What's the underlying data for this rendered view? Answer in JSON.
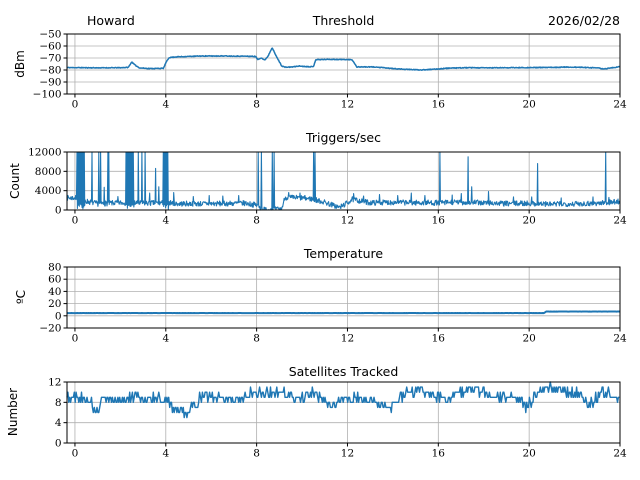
{
  "figure": {
    "background": "#ffffff",
    "line_color": "#1f77b4",
    "grid_color": "#b0b0b0",
    "axis_color": "#000000",
    "text_color": "#000000"
  },
  "chart_data": [
    {
      "type": "line",
      "title": "Threshold",
      "title_left": "Howard",
      "title_right": "2026/02/28",
      "ylabel": "dBm",
      "xlabel": "",
      "xlim": [
        -0.35,
        24
      ],
      "ylim": [
        -100,
        -50
      ],
      "xticks": [
        0,
        4,
        8,
        12,
        16,
        20,
        24
      ],
      "yticks": [
        -100,
        -90,
        -80,
        -70,
        -60,
        -50
      ],
      "grid": true,
      "legend": false,
      "series": [
        {
          "name": "signal-level-dbm",
          "dt": 0.02,
          "seed": 11,
          "noise": 0.3,
          "round": false,
          "keypoints": [
            [
              0,
              -78
            ],
            [
              1.0,
              -78.2
            ],
            [
              2.0,
              -78.1
            ],
            [
              2.35,
              -77.8
            ],
            [
              2.5,
              -73.3
            ],
            [
              2.65,
              -76
            ],
            [
              2.85,
              -78.3
            ],
            [
              3.3,
              -78.8
            ],
            [
              3.9,
              -78.6
            ],
            [
              4.0,
              -74
            ],
            [
              4.15,
              -69.6
            ],
            [
              4.5,
              -69
            ],
            [
              5.5,
              -68.4
            ],
            [
              6.5,
              -68.3
            ],
            [
              7.5,
              -68.5
            ],
            [
              7.95,
              -68.7
            ],
            [
              8.05,
              -71.3
            ],
            [
              8.2,
              -69.8
            ],
            [
              8.35,
              -71.8
            ],
            [
              8.5,
              -68.5
            ],
            [
              8.68,
              -61.3
            ],
            [
              8.85,
              -68
            ],
            [
              9.1,
              -76.5
            ],
            [
              9.25,
              -77.7
            ],
            [
              9.6,
              -77.4
            ],
            [
              9.85,
              -76.7
            ],
            [
              10.15,
              -77.1
            ],
            [
              10.5,
              -77.3
            ],
            [
              10.6,
              -71.4
            ],
            [
              11.2,
              -71.1
            ],
            [
              12.2,
              -71.4
            ],
            [
              12.3,
              -74
            ],
            [
              12.4,
              -77.4
            ],
            [
              13.2,
              -77.5
            ],
            [
              14.0,
              -78.8
            ],
            [
              14.6,
              -79.5
            ],
            [
              15.2,
              -79.9
            ],
            [
              15.8,
              -79.4
            ],
            [
              16.4,
              -78.5
            ],
            [
              17.2,
              -78.1
            ],
            [
              18.0,
              -78.2
            ],
            [
              19.0,
              -78.1
            ],
            [
              20.0,
              -78.0
            ],
            [
              20.8,
              -77.9
            ],
            [
              21.6,
              -77.6
            ],
            [
              22.4,
              -77.8
            ],
            [
              23.0,
              -78.3
            ],
            [
              23.3,
              -79.1
            ],
            [
              23.55,
              -78.4
            ],
            [
              24,
              -77.3
            ]
          ]
        }
      ]
    },
    {
      "type": "line",
      "title": "Triggers/sec",
      "ylabel": "Count",
      "xlabel": "",
      "xlim": [
        -0.35,
        24
      ],
      "ylim": [
        0,
        12000
      ],
      "xticks": [
        0,
        4,
        8,
        12,
        16,
        20,
        24
      ],
      "yticks": [
        0,
        4000,
        8000,
        12000
      ],
      "grid": true,
      "legend": false,
      "series": [
        {
          "name": "trigger-rate",
          "dt": 0.02,
          "seed": 7,
          "noise": 550,
          "round": false,
          "keypoints": [
            [
              0,
              2500
            ],
            [
              0.5,
              1800
            ],
            [
              1.0,
              1300
            ],
            [
              2.0,
              1500
            ],
            [
              3.0,
              1400
            ],
            [
              4.2,
              1500
            ],
            [
              4.5,
              1300
            ],
            [
              6,
              1300
            ],
            [
              7.5,
              1400
            ],
            [
              8.0,
              1000
            ],
            [
              8.3,
              100
            ],
            [
              9.1,
              150
            ],
            [
              9.25,
              2600
            ],
            [
              10.0,
              2500
            ],
            [
              10.4,
              2300
            ],
            [
              11.0,
              1600
            ],
            [
              11.65,
              500
            ],
            [
              12.0,
              1500
            ],
            [
              12.2,
              2200
            ],
            [
              13,
              1500
            ],
            [
              14,
              1600
            ],
            [
              15,
              1500
            ],
            [
              16,
              1500
            ],
            [
              17,
              1600
            ],
            [
              18,
              1500
            ],
            [
              19,
              1300
            ],
            [
              20,
              1400
            ],
            [
              21,
              1200
            ],
            [
              22,
              1300
            ],
            [
              23,
              1400
            ],
            [
              24,
              1800
            ]
          ],
          "spikes": [
            [
              0.75,
              12000
            ],
            [
              1.05,
              12000
            ],
            [
              1.15,
              12000
            ],
            [
              1.3,
              4700
            ],
            [
              1.45,
              12000
            ],
            [
              1.5,
              12000
            ],
            [
              1.9,
              2800
            ],
            [
              2.8,
              12000
            ],
            [
              2.95,
              12000
            ],
            [
              3.1,
              12000
            ],
            [
              3.3,
              3500
            ],
            [
              3.55,
              8600
            ],
            [
              3.7,
              4800
            ],
            [
              4.35,
              3600
            ],
            [
              5.2,
              2800
            ],
            [
              5.9,
              3000
            ],
            [
              6.5,
              2900
            ],
            [
              7.2,
              3000
            ],
            [
              8.05,
              12000
            ],
            [
              8.2,
              12000
            ],
            [
              8.68,
              12000
            ],
            [
              8.75,
              12000
            ],
            [
              9.4,
              3600
            ],
            [
              9.9,
              3500
            ],
            [
              10.5,
              12000
            ],
            [
              10.55,
              12000
            ],
            [
              12.25,
              3400
            ],
            [
              12.7,
              2900
            ],
            [
              13.4,
              3200
            ],
            [
              14.2,
              3000
            ],
            [
              14.8,
              3500
            ],
            [
              15.4,
              3000
            ],
            [
              16.05,
              12000
            ],
            [
              16.6,
              3100
            ],
            [
              17.0,
              3400
            ],
            [
              17.3,
              11000
            ],
            [
              17.45,
              4800
            ],
            [
              18.2,
              3800
            ],
            [
              19.3,
              2700
            ],
            [
              20.1,
              2700
            ],
            [
              20.35,
              9600
            ],
            [
              21.4,
              2500
            ],
            [
              22.8,
              2700
            ],
            [
              23.35,
              12000
            ],
            [
              23.5,
              2600
            ]
          ],
          "blocks": [
            [
              0.08,
              0.45
            ],
            [
              2.25,
              2.6
            ],
            [
              3.88,
              4.12
            ]
          ],
          "block_high": 12000,
          "block_low": 700
        }
      ]
    },
    {
      "type": "line",
      "title": "Temperature",
      "ylabel": "ºC",
      "xlabel": "",
      "xlim": [
        -0.35,
        24
      ],
      "ylim": [
        -20,
        80
      ],
      "xticks": [
        0,
        4,
        8,
        12,
        16,
        20,
        24
      ],
      "yticks": [
        -20,
        0,
        20,
        40,
        60,
        80
      ],
      "grid": true,
      "legend": false,
      "series": [
        {
          "name": "temperature-c",
          "dt": 0.05,
          "seed": 3,
          "noise": 0.08,
          "round": false,
          "keypoints": [
            [
              0,
              4.5
            ],
            [
              20.65,
              4.5
            ],
            [
              20.75,
              7
            ],
            [
              24,
              7
            ]
          ]
        }
      ]
    },
    {
      "type": "line",
      "title": "Satellites Tracked",
      "ylabel": "Number",
      "xlabel": "",
      "xlim": [
        -0.35,
        24
      ],
      "ylim": [
        0,
        12
      ],
      "xticks": [
        0,
        4,
        8,
        12,
        16,
        20,
        24
      ],
      "yticks": [
        0,
        4,
        8,
        12
      ],
      "grid": true,
      "legend": false,
      "series": [
        {
          "name": "satellites-count",
          "dt": 0.04,
          "seed": 5,
          "noise": 1.0,
          "round": true,
          "clip": [
            5,
            12
          ],
          "keypoints": [
            [
              0,
              9
            ],
            [
              0.7,
              8.5
            ],
            [
              0.95,
              5.5
            ],
            [
              1.2,
              8.5
            ],
            [
              2,
              8.5
            ],
            [
              3,
              9
            ],
            [
              4.1,
              8.5
            ],
            [
              4.3,
              7
            ],
            [
              4.9,
              6
            ],
            [
              5.2,
              7
            ],
            [
              5.5,
              9
            ],
            [
              6.5,
              9
            ],
            [
              7,
              8.5
            ],
            [
              7.9,
              10
            ],
            [
              8.3,
              9.5
            ],
            [
              9.2,
              10
            ],
            [
              9.8,
              8.5
            ],
            [
              10.5,
              10
            ],
            [
              11.3,
              7.5
            ],
            [
              11.7,
              8.5
            ],
            [
              12.5,
              9
            ],
            [
              13.2,
              8
            ],
            [
              13.9,
              7
            ],
            [
              14.5,
              9.5
            ],
            [
              15.2,
              10.5
            ],
            [
              15.8,
              9.5
            ],
            [
              16.5,
              9
            ],
            [
              17.3,
              10.5
            ],
            [
              17.8,
              10.5
            ],
            [
              18.4,
              9
            ],
            [
              19.2,
              9
            ],
            [
              19.9,
              7
            ],
            [
              20.5,
              10.5
            ],
            [
              21.0,
              11
            ],
            [
              21.5,
              10.5
            ],
            [
              22.2,
              9.5
            ],
            [
              22.7,
              7.5
            ],
            [
              23.2,
              10
            ],
            [
              24,
              9
            ]
          ]
        }
      ]
    }
  ]
}
